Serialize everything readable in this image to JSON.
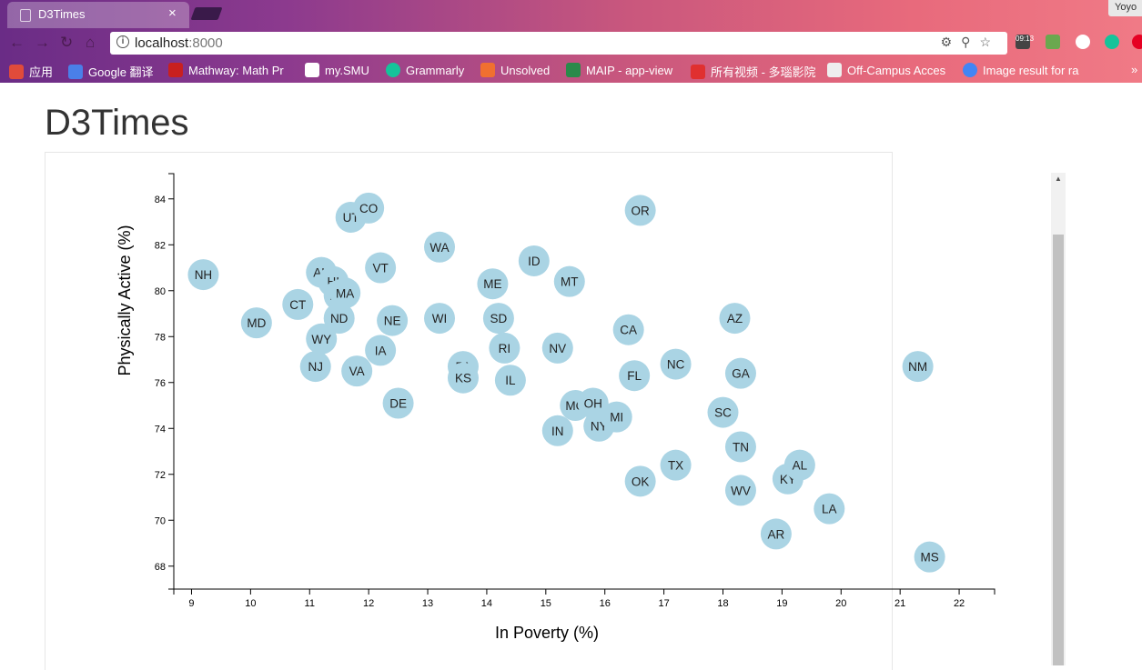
{
  "browser": {
    "tab_title": "D3Times",
    "tab_close": "×",
    "profile": "Yoyo",
    "url_host": "localhost",
    "url_port": ":8000",
    "info_glyph": "i",
    "clock": "09:13",
    "bookmarks": [
      {
        "label": "应用",
        "color": "#e04b3a"
      },
      {
        "label": "Google 翻译",
        "color": "#4a7fe8"
      },
      {
        "label": "Mathway: Math Pr",
        "color": "#c82020"
      },
      {
        "label": "my.SMU",
        "color": "#ffffff"
      },
      {
        "label": "Grammarly",
        "color": "#15c39a"
      },
      {
        "label": "Unsolved",
        "color": "#f07030"
      },
      {
        "label": "MAIP - app-view",
        "color": "#2a8a4a"
      },
      {
        "label": "所有视频 - 多瑙影院",
        "color": "#e03030"
      },
      {
        "label": "Off-Campus Acces",
        "color": "#eeeeee"
      },
      {
        "label": "Image result for ra",
        "color": "#4285f4"
      }
    ]
  },
  "page": {
    "title": "D3Times"
  },
  "chart_data": {
    "type": "scatter",
    "xlabel": "In Poverty (%)",
    "ylabel": "Physically Active (%)",
    "xlim": [
      8.7,
      22.6
    ],
    "ylim": [
      67.0,
      85.1
    ],
    "xticks": [
      9,
      10,
      11,
      12,
      13,
      14,
      15,
      16,
      17,
      18,
      19,
      20,
      21,
      22
    ],
    "yticks": [
      68,
      70,
      72,
      74,
      76,
      78,
      80,
      82,
      84
    ],
    "point_color": "#aad4e4",
    "points": [
      {
        "label": "NH",
        "x": 9.2,
        "y": 80.7
      },
      {
        "label": "MD",
        "x": 10.1,
        "y": 78.6
      },
      {
        "label": "CT",
        "x": 10.8,
        "y": 79.4
      },
      {
        "label": "NJ",
        "x": 11.1,
        "y": 76.7
      },
      {
        "label": "WY",
        "x": 11.2,
        "y": 77.9
      },
      {
        "label": "AK",
        "x": 11.2,
        "y": 80.8
      },
      {
        "label": "HI",
        "x": 11.4,
        "y": 80.4
      },
      {
        "label": "MN",
        "x": 11.5,
        "y": 79.8
      },
      {
        "label": "MA",
        "x": 11.6,
        "y": 79.9
      },
      {
        "label": "ND",
        "x": 11.5,
        "y": 78.8
      },
      {
        "label": "VA",
        "x": 11.8,
        "y": 76.5
      },
      {
        "label": "UT",
        "x": 11.7,
        "y": 83.2
      },
      {
        "label": "CO",
        "x": 12.0,
        "y": 83.6
      },
      {
        "label": "VT",
        "x": 12.2,
        "y": 81.0
      },
      {
        "label": "IA",
        "x": 12.2,
        "y": 77.4
      },
      {
        "label": "NE",
        "x": 12.4,
        "y": 78.7
      },
      {
        "label": "DE",
        "x": 12.5,
        "y": 75.1
      },
      {
        "label": "WA",
        "x": 13.2,
        "y": 81.9
      },
      {
        "label": "WI",
        "x": 13.2,
        "y": 78.8
      },
      {
        "label": "PA",
        "x": 13.6,
        "y": 76.7
      },
      {
        "label": "KS",
        "x": 13.6,
        "y": 76.2
      },
      {
        "label": "ME",
        "x": 14.1,
        "y": 80.3
      },
      {
        "label": "SD",
        "x": 14.2,
        "y": 78.8
      },
      {
        "label": "RI",
        "x": 14.3,
        "y": 77.5
      },
      {
        "label": "IL",
        "x": 14.4,
        "y": 76.1
      },
      {
        "label": "ID",
        "x": 14.8,
        "y": 81.3
      },
      {
        "label": "NV",
        "x": 15.2,
        "y": 77.5
      },
      {
        "label": "IN",
        "x": 15.2,
        "y": 73.9
      },
      {
        "label": "MT",
        "x": 15.4,
        "y": 80.4
      },
      {
        "label": "MO",
        "x": 15.5,
        "y": 75.0
      },
      {
        "label": "OH",
        "x": 15.8,
        "y": 75.1
      },
      {
        "label": "NY",
        "x": 15.9,
        "y": 74.1
      },
      {
        "label": "MI",
        "x": 16.2,
        "y": 74.5
      },
      {
        "label": "CA",
        "x": 16.4,
        "y": 78.3
      },
      {
        "label": "OR",
        "x": 16.6,
        "y": 83.5
      },
      {
        "label": "FL",
        "x": 16.5,
        "y": 76.3
      },
      {
        "label": "OK",
        "x": 16.6,
        "y": 71.7
      },
      {
        "label": "NC",
        "x": 17.2,
        "y": 76.8
      },
      {
        "label": "TX",
        "x": 17.2,
        "y": 72.4
      },
      {
        "label": "SC",
        "x": 18.0,
        "y": 74.7
      },
      {
        "label": "AZ",
        "x": 18.2,
        "y": 78.8
      },
      {
        "label": "GA",
        "x": 18.3,
        "y": 76.4
      },
      {
        "label": "TN",
        "x": 18.3,
        "y": 73.2
      },
      {
        "label": "WV",
        "x": 18.3,
        "y": 71.3
      },
      {
        "label": "AR",
        "x": 18.9,
        "y": 69.4
      },
      {
        "label": "KY",
        "x": 19.1,
        "y": 71.8
      },
      {
        "label": "AL",
        "x": 19.3,
        "y": 72.4
      },
      {
        "label": "LA",
        "x": 19.8,
        "y": 70.5
      },
      {
        "label": "NM",
        "x": 21.3,
        "y": 76.7
      },
      {
        "label": "MS",
        "x": 21.5,
        "y": 68.4
      }
    ]
  }
}
